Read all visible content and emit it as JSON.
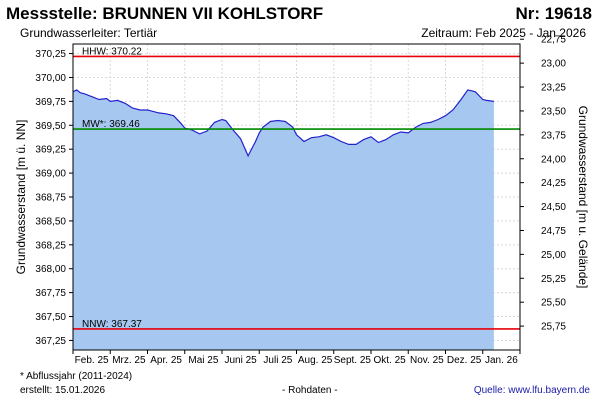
{
  "header": {
    "title": "Messstelle: BRUNNEN VII KOHLSTORF",
    "number": "Nr: 19618",
    "aquifer": "Grundwasserleiter: Tertiär",
    "period": "Zeitraum: Feb 2025 - Jan 2026"
  },
  "footer": {
    "note": "* Abflussjahr (2011-2024)",
    "created": "erstellt:  15.01.2026",
    "raw": "- Rohdaten -",
    "source_label": "Quelle:",
    "source_url": "www.lfu.bayern.de"
  },
  "chart_data": {
    "type": "area",
    "xlabel": "",
    "ylabel": "Grundwasserstand [m ü. NN]",
    "y2label": "Grundwasserstand [m u. Gelände]",
    "ylim": [
      367.15,
      370.35
    ],
    "y2lim": [
      22.8,
      26.0
    ],
    "yticks": [
      "370,25",
      "370,00",
      "369,75",
      "369,50",
      "369,25",
      "369,00",
      "368,75",
      "368,50",
      "368,25",
      "368,00",
      "367,75",
      "367,50",
      "367,25"
    ],
    "y2ticks": [
      "22,75",
      "23,00",
      "23,25",
      "23,50",
      "23,75",
      "24,00",
      "24,25",
      "24,50",
      "24,75",
      "25,00",
      "25,25",
      "25,50",
      "25,75"
    ],
    "xticks": [
      "Feb. 25",
      "Mrz. 25",
      "Apr. 25",
      "Mai 25",
      "Juni 25",
      "Juli 25",
      "Aug. 25",
      "Sept. 25",
      "Okt. 25",
      "Nov. 25",
      "Dez. 25",
      "Jan. 26"
    ],
    "xlim": [
      0,
      12
    ],
    "grid": true,
    "reference_lines": [
      {
        "name": "HHW",
        "label": "HHW: 370.22",
        "value": 370.22,
        "color": "#e8000b"
      },
      {
        "name": "MW",
        "label": "MW*: 369.46",
        "value": 369.46,
        "color": "#008a00"
      },
      {
        "name": "NNW",
        "label": "NNW: 367.37",
        "value": 367.37,
        "color": "#e8000b"
      }
    ],
    "series": [
      {
        "color": "#2222cc",
        "fill": "#a6c8f0",
        "x": [
          0.0,
          0.1,
          0.2,
          0.3,
          0.5,
          0.7,
          0.9,
          1.0,
          1.2,
          1.4,
          1.6,
          1.8,
          2.0,
          2.1,
          2.3,
          2.5,
          2.7,
          2.9,
          3.0,
          3.2,
          3.4,
          3.6,
          3.8,
          4.0,
          4.1,
          4.3,
          4.5,
          4.7,
          4.9,
          5.0,
          5.1,
          5.3,
          5.5,
          5.7,
          5.9,
          6.0,
          6.2,
          6.4,
          6.6,
          6.8,
          7.0,
          7.2,
          7.4,
          7.6,
          7.8,
          8.0,
          8.2,
          8.4,
          8.6,
          8.8,
          9.0,
          9.2,
          9.4,
          9.6,
          9.8,
          10.0,
          10.2,
          10.4,
          10.6,
          10.8,
          11.0,
          11.1,
          11.3
        ],
        "y": [
          369.85,
          369.87,
          369.84,
          369.83,
          369.8,
          369.77,
          369.78,
          369.75,
          369.76,
          369.73,
          369.68,
          369.66,
          369.66,
          369.65,
          369.63,
          369.62,
          369.6,
          369.52,
          369.47,
          369.45,
          369.41,
          369.44,
          369.53,
          369.56,
          369.55,
          369.45,
          369.36,
          369.18,
          369.33,
          369.42,
          369.48,
          369.54,
          369.55,
          369.54,
          369.48,
          369.4,
          369.33,
          369.37,
          369.38,
          369.4,
          369.37,
          369.33,
          369.3,
          369.3,
          369.35,
          369.38,
          369.32,
          369.35,
          369.4,
          369.43,
          369.42,
          369.48,
          369.52,
          369.53,
          369.56,
          369.6,
          369.66,
          369.76,
          369.87,
          369.85,
          369.77,
          369.76,
          369.75
        ]
      }
    ]
  }
}
